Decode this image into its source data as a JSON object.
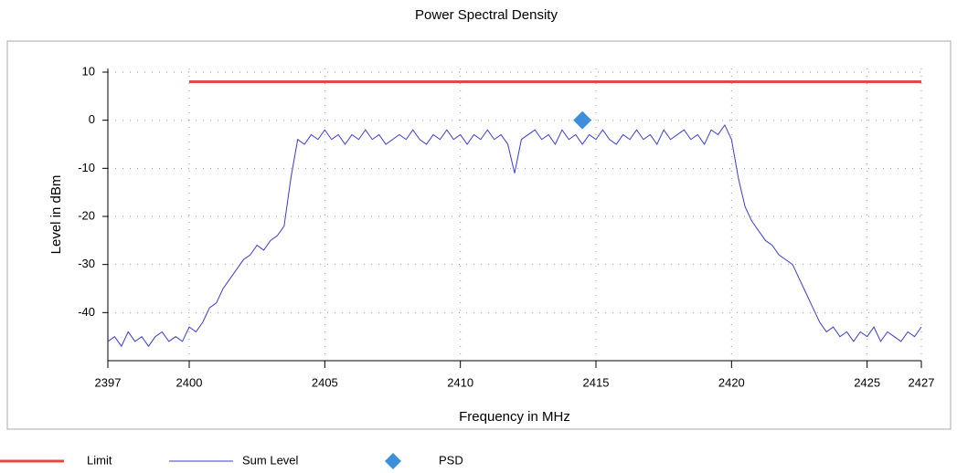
{
  "chart_data": {
    "type": "line",
    "title": "Power Spectral Density",
    "xlabel": "Frequency in MHz",
    "ylabel": "Level in dBm",
    "xlim": [
      2397,
      2427
    ],
    "ylim": [
      -50,
      10
    ],
    "xticks": [
      2397,
      2400,
      2405,
      2410,
      2415,
      2420,
      2425,
      2427
    ],
    "yticks": [
      -40,
      -30,
      -20,
      -10,
      0,
      10
    ],
    "grid": true,
    "series": [
      {
        "name": "Limit",
        "color": "#e84545",
        "x": [
          2400,
          2427
        ],
        "values": [
          8,
          8
        ]
      },
      {
        "name": "Sum Level",
        "color": "#3a3ae0",
        "x": [
          2397,
          2397.25,
          2397.5,
          2397.75,
          2398,
          2398.25,
          2398.5,
          2398.75,
          2399,
          2399.25,
          2399.5,
          2399.75,
          2400,
          2400.25,
          2400.5,
          2400.75,
          2401,
          2401.25,
          2401.5,
          2401.75,
          2402,
          2402.25,
          2402.5,
          2402.75,
          2403,
          2403.25,
          2403.5,
          2403.75,
          2404,
          2404.25,
          2404.5,
          2404.75,
          2405,
          2405.25,
          2405.5,
          2405.75,
          2406,
          2406.25,
          2406.5,
          2406.75,
          2407,
          2407.25,
          2407.5,
          2407.75,
          2408,
          2408.25,
          2408.5,
          2408.75,
          2409,
          2409.25,
          2409.5,
          2409.75,
          2410,
          2410.25,
          2410.5,
          2410.75,
          2411,
          2411.25,
          2411.5,
          2411.75,
          2412,
          2412.25,
          2412.5,
          2412.75,
          2413,
          2413.25,
          2413.5,
          2413.75,
          2414,
          2414.25,
          2414.5,
          2414.75,
          2415,
          2415.25,
          2415.5,
          2415.75,
          2416,
          2416.25,
          2416.5,
          2416.75,
          2417,
          2417.25,
          2417.5,
          2417.75,
          2418,
          2418.25,
          2418.5,
          2418.75,
          2419,
          2419.25,
          2419.5,
          2419.75,
          2420,
          2420.25,
          2420.5,
          2420.75,
          2421,
          2421.25,
          2421.5,
          2421.75,
          2422,
          2422.25,
          2422.5,
          2422.75,
          2423,
          2423.25,
          2423.5,
          2423.75,
          2424,
          2424.25,
          2424.5,
          2424.75,
          2425,
          2425.25,
          2425.5,
          2425.75,
          2426,
          2426.25,
          2426.5,
          2426.75,
          2427
        ],
        "values": [
          -46,
          -45,
          -47,
          -44,
          -46,
          -45,
          -47,
          -45,
          -44,
          -46,
          -45,
          -46,
          -43,
          -44,
          -42,
          -39,
          -38,
          -35,
          -33,
          -31,
          -29,
          -28,
          -26,
          -27,
          -25,
          -24,
          -22,
          -12,
          -4,
          -5,
          -3,
          -4,
          -2,
          -4,
          -3,
          -5,
          -3,
          -4,
          -2,
          -4,
          -3,
          -5,
          -4,
          -3,
          -4,
          -2,
          -4,
          -5,
          -3,
          -4,
          -2,
          -4,
          -3,
          -5,
          -3,
          -4,
          -2,
          -4,
          -3,
          -5,
          -11,
          -4,
          -3,
          -2,
          -4,
          -3,
          -5,
          -2,
          -4,
          -3,
          -5,
          -3,
          -4,
          -2,
          -4,
          -5,
          -3,
          -4,
          -2,
          -4,
          -3,
          -5,
          -2,
          -4,
          -3,
          -2,
          -4,
          -3,
          -5,
          -2,
          -3,
          -1,
          -4,
          -12,
          -18,
          -21,
          -23,
          -25,
          -26,
          -28,
          -29,
          -30,
          -33,
          -36,
          -39,
          -42,
          -44,
          -43,
          -45,
          -44,
          -46,
          -44,
          -45,
          -43,
          -46,
          -44,
          -45,
          -46,
          -44,
          -45,
          -43
        ]
      },
      {
        "name": "PSD",
        "color": "#3d8fdc",
        "marker": "diamond",
        "x": [
          2414.5
        ],
        "values": [
          0
        ]
      }
    ]
  }
}
